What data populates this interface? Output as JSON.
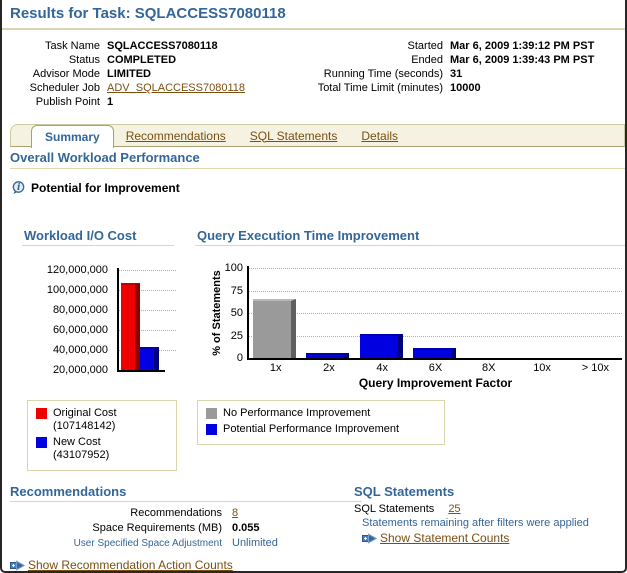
{
  "page": {
    "title": "Results for Task: SQLACCESS7080118"
  },
  "details": {
    "left": [
      {
        "label": "Task Name",
        "value": "SQLACCESS7080118",
        "style": "bold"
      },
      {
        "label": "Status",
        "value": "COMPLETED",
        "style": "bold"
      },
      {
        "label": "Advisor Mode",
        "value": "LIMITED",
        "style": "bold"
      },
      {
        "label": "Scheduler Job",
        "value": "ADV_SQLACCESS7080118",
        "style": "link"
      },
      {
        "label": "Publish Point",
        "value": "1",
        "style": "bold"
      }
    ],
    "right": [
      {
        "label": "Started",
        "value": "Mar 6, 2009 1:39:12 PM PST",
        "style": "bold"
      },
      {
        "label": "Ended",
        "value": "Mar 6, 2009 1:39:43 PM PST",
        "style": "bold"
      },
      {
        "label": "Running Time (seconds)",
        "value": "31",
        "style": "bold"
      },
      {
        "label": "Total Time Limit (minutes)",
        "value": "10000",
        "style": "bold"
      }
    ]
  },
  "tabs": [
    {
      "label": "Summary",
      "active": true
    },
    {
      "label": "Recommendations",
      "active": false
    },
    {
      "label": "SQL Statements",
      "active": false
    },
    {
      "label": "Details",
      "active": false
    }
  ],
  "summary": {
    "section_title": "Overall Workload Performance",
    "potential_label": "Potential for Improvement",
    "info_icon": "info-icon"
  },
  "palette": {
    "red": {
      "face": "#ee0000",
      "side": "#8d0000",
      "top": "#c40000"
    },
    "blue": {
      "face": "#0000e0",
      "side": "#000078",
      "top": "#0000b0"
    },
    "gray": {
      "face": "#9a9a9a",
      "side": "#5f5f5f",
      "top": "#b9b9b9"
    }
  },
  "chart_data": [
    {
      "type": "bar",
      "title": "Workload I/O Cost",
      "categories": [
        "Original Cost",
        "New Cost"
      ],
      "values": [
        107148142,
        43107952
      ],
      "bar_colors": [
        "red",
        "blue"
      ],
      "ylim": [
        20000000,
        120000000
      ],
      "ytick_labels": [
        "120,000,000",
        "100,000,000",
        "80,000,000",
        "60,000,000",
        "40,000,000",
        "20,000,000"
      ],
      "xlabel": "",
      "ylabel": "",
      "grid": "dotted-horizontal"
    },
    {
      "type": "bar",
      "title": "Query Execution Time Improvement",
      "categories": [
        "1x",
        "2x",
        "4x",
        "6X",
        "8X",
        "10x",
        "> 10x"
      ],
      "values": [
        65,
        6,
        27,
        11,
        0,
        0,
        0
      ],
      "bar_colors": [
        "gray",
        "blue",
        "blue",
        "blue",
        "blue",
        "blue",
        "blue"
      ],
      "xlabel": "Query Improvement Factor",
      "ylabel": "% of Statements",
      "ylim": [
        0,
        100
      ],
      "yticks": [
        100,
        75,
        50,
        25,
        0
      ],
      "grid": "dotted-horizontal"
    }
  ],
  "legends": {
    "io_cost": [
      {
        "color": "#ee0000",
        "label": "Original Cost",
        "sublabel": "(107148142)"
      },
      {
        "color": "#0000e0",
        "label": "New Cost",
        "sublabel": "(43107952)"
      }
    ],
    "improvement": [
      {
        "color": "#9a9a9a",
        "label": "No Performance Improvement"
      },
      {
        "color": "#0000e0",
        "label": "Potential Performance Improvement"
      }
    ]
  },
  "recommendations": {
    "header": "Recommendations",
    "rows": [
      {
        "label": "Recommendations",
        "value": "8",
        "style": "link",
        "small_label": false
      },
      {
        "label": "Space Requirements (MB)",
        "value": "0.055",
        "style": "bold",
        "small_label": false
      },
      {
        "label": "User Specified Space Adjustment",
        "value": "Unlimited",
        "style": "muted",
        "small_label": true
      }
    ],
    "show_link": "Show Recommendation Action Counts",
    "expand_icon": "expand-plus-arrow-icon"
  },
  "sql_statements": {
    "header": "SQL Statements",
    "rows": [
      {
        "label": "SQL Statements",
        "value": "25",
        "style": "link"
      }
    ],
    "note": "Statements remaining after filters were applied",
    "show_link": "Show Statement Counts",
    "expand_icon": "expand-plus-arrow-icon"
  },
  "colors": {
    "accent_blue": "#336699",
    "link_brown": "#7a4f12",
    "rule_khaki": "#ddd9ae",
    "tab_bar_bg": "#f6f2e2",
    "tab_border": "#a8a171",
    "grid_dot": "#c9b464"
  }
}
